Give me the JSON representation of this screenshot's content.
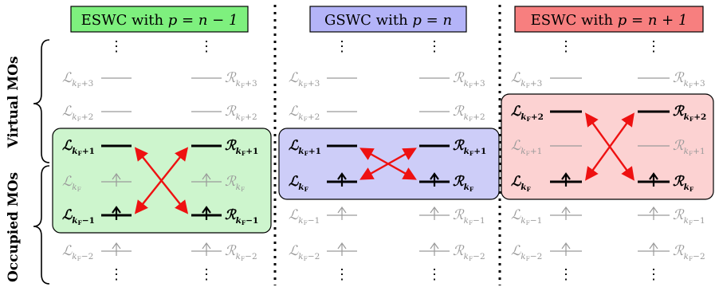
{
  "colors": {
    "eswc_minus": "#7ef07e",
    "gswc": "#b4b4f8",
    "eswc_plus": "#f77f7f",
    "box_minus": "#cdf5cd",
    "box_gswc": "#cdcdf8",
    "box_plus": "#fcd2d2",
    "arrow": "#ee1111",
    "faded": "#9a9a9a",
    "ink": "#000000"
  },
  "axis_groups": {
    "virtual": "Virtual MOs",
    "occupied": "Occupied MOs"
  },
  "level_names": [
    "kF+3",
    "kF+2",
    "kF+1",
    "kF",
    "kF-1",
    "kF-2"
  ],
  "vdots": "⋮",
  "panels": [
    {
      "id": "eswc-minus",
      "title_prefix": "ESWC with ",
      "title_math": "p = n − 1",
      "title_color_key": "eswc_minus",
      "box_color_key": "box_minus",
      "highlight_levels": [
        "kF+1",
        "kF-1"
      ],
      "occupied_levels": [
        "kF",
        "kF-1",
        "kF-2"
      ],
      "swap_pair": [
        "kF+1",
        "kF-1"
      ]
    },
    {
      "id": "gswc",
      "title_prefix": "GSWC with ",
      "title_math": "p = n",
      "title_color_key": "gswc",
      "box_color_key": "box_gswc",
      "highlight_levels": [
        "kF+1",
        "kF"
      ],
      "occupied_levels": [
        "kF",
        "kF-1",
        "kF-2"
      ],
      "swap_pair": [
        "kF+1",
        "kF"
      ]
    },
    {
      "id": "eswc-plus",
      "title_prefix": "ESWC with ",
      "title_math": "p = n + 1",
      "title_color_key": "eswc_plus",
      "box_color_key": "box_plus",
      "highlight_levels": [
        "kF+2",
        "kF"
      ],
      "occupied_levels": [
        "kF",
        "kF-1",
        "kF-2"
      ],
      "swap_pair": [
        "kF+2",
        "kF"
      ]
    }
  ]
}
